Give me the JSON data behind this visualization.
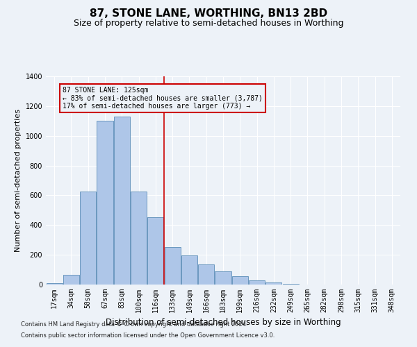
{
  "title": "87, STONE LANE, WORTHING, BN13 2BD",
  "subtitle": "Size of property relative to semi-detached houses in Worthing",
  "xlabel": "Distribution of semi-detached houses by size in Worthing",
  "ylabel": "Number of semi-detached properties",
  "footnote1": "Contains HM Land Registry data © Crown copyright and database right 2024.",
  "footnote2": "Contains public sector information licensed under the Open Government Licence v3.0.",
  "annotation_line1": "87 STONE LANE: 125sqm",
  "annotation_line2": "← 83% of semi-detached houses are smaller (3,787)",
  "annotation_line3": "17% of semi-detached houses are larger (773) →",
  "bar_color": "#aec6e8",
  "bar_edge_color": "#5b8db8",
  "vline_color": "#cc0000",
  "vline_x": 6.5,
  "categories": [
    "17sqm",
    "34sqm",
    "50sqm",
    "67sqm",
    "83sqm",
    "100sqm",
    "116sqm",
    "133sqm",
    "149sqm",
    "166sqm",
    "183sqm",
    "199sqm",
    "216sqm",
    "232sqm",
    "249sqm",
    "265sqm",
    "282sqm",
    "298sqm",
    "315sqm",
    "331sqm",
    "348sqm"
  ],
  "values": [
    10,
    65,
    625,
    1100,
    1130,
    625,
    455,
    250,
    195,
    135,
    90,
    55,
    30,
    12,
    5,
    2,
    1,
    0,
    0,
    0,
    1
  ],
  "ylim": [
    0,
    1400
  ],
  "yticks": [
    0,
    200,
    400,
    600,
    800,
    1000,
    1200,
    1400
  ],
  "bg_color": "#edf2f8",
  "grid_color": "#ffffff",
  "annotation_box_color": "#cc0000",
  "title_fontsize": 11,
  "subtitle_fontsize": 9,
  "axis_label_fontsize": 8.5,
  "tick_fontsize": 7,
  "ylabel_fontsize": 8
}
